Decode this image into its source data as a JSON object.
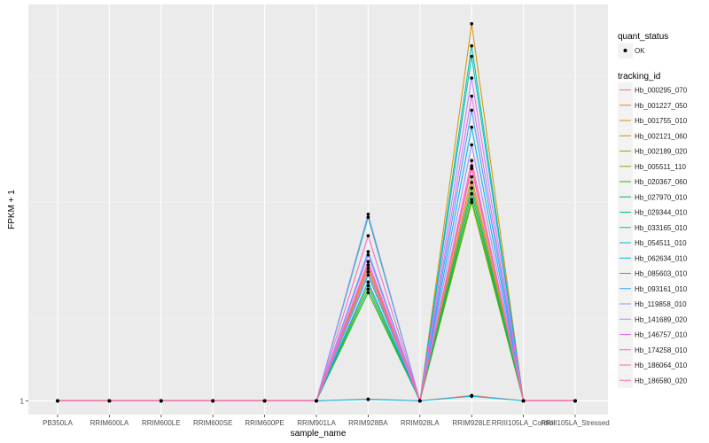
{
  "chart_data": {
    "type": "line",
    "xlabel": "sample_name",
    "ylabel": "FPKM + 1",
    "y_scale": "log",
    "ylim": [
      0.97,
      2.4
    ],
    "y_ticks": [
      1
    ],
    "y_tick_labels": [
      "1"
    ],
    "categories": [
      "PB350LA",
      "RRIM600LA",
      "RRIM600LE",
      "RRIM600SE",
      "RRIM600PE",
      "RRIM901LA",
      "RRIM928BA",
      "RRIM928LA",
      "RRIM928LE",
      "RRIII105LA_Control",
      "RRIII105LA_Stressed"
    ],
    "legend_quant": {
      "title": "quant_status",
      "entries": [
        "OK"
      ]
    },
    "legend_tracking": {
      "title": "tracking_id"
    },
    "series": [
      {
        "name": "Hb_000295_070",
        "color": "#F8766D",
        "values": [
          1,
          1,
          1,
          1,
          1,
          1,
          1.004,
          1,
          1.012,
          1,
          1
        ]
      },
      {
        "name": "Hb_001227_050",
        "color": "#EA8331",
        "values": [
          1,
          1,
          1,
          1,
          1,
          1,
          1.36,
          1,
          1.62,
          1,
          1
        ]
      },
      {
        "name": "Hb_001755_010",
        "color": "#D89000",
        "values": [
          1,
          1,
          1,
          1,
          1,
          1,
          1.34,
          1,
          2.3,
          1,
          1
        ]
      },
      {
        "name": "Hb_002121_060",
        "color": "#C09B00",
        "values": [
          1,
          1,
          1,
          1,
          1,
          1,
          1.35,
          1,
          1.64,
          1,
          1
        ]
      },
      {
        "name": "Hb_002189_020",
        "color": "#A3A500",
        "values": [
          1,
          1,
          1,
          1,
          1,
          1,
          1.33,
          1,
          1.6,
          1,
          1
        ]
      },
      {
        "name": "Hb_005511_110",
        "color": "#7CAE00",
        "values": [
          1,
          1,
          1,
          1,
          1,
          1,
          1.29,
          1,
          1.55,
          1,
          1
        ]
      },
      {
        "name": "Hb_020367_060",
        "color": "#39B600",
        "values": [
          1,
          1,
          1,
          1,
          1,
          1,
          1.27,
          1,
          1.56,
          1,
          1
        ]
      },
      {
        "name": "Hb_027970_010",
        "color": "#00BB4E",
        "values": [
          1,
          1,
          1,
          1,
          1,
          1,
          1.3,
          1,
          1.58,
          1,
          1
        ]
      },
      {
        "name": "Hb_029344_010",
        "color": "#00BF7D",
        "values": [
          1,
          1,
          1,
          1,
          1,
          1,
          1.28,
          1,
          1.6,
          1,
          1
        ]
      },
      {
        "name": "Hb_033165_010",
        "color": "#00C1A3",
        "values": [
          1,
          1,
          1,
          1,
          1,
          1,
          1.5,
          1,
          2.19,
          1,
          1
        ]
      },
      {
        "name": "Hb_054511_010",
        "color": "#00BFC4",
        "values": [
          1,
          1,
          1,
          1,
          1,
          1,
          1.32,
          1,
          2.14,
          1,
          1
        ]
      },
      {
        "name": "Hb_062634_010",
        "color": "#00BAE0",
        "values": [
          1,
          1,
          1,
          1,
          1,
          1,
          1.003,
          1,
          1.01,
          1,
          1
        ]
      },
      {
        "name": "Hb_085603_010",
        "color": "#00B0F6",
        "values": [
          1,
          1,
          1,
          1,
          1,
          1,
          1.3,
          1,
          1.83,
          1,
          1
        ]
      },
      {
        "name": "Hb_093161_010",
        "color": "#35A2FF",
        "values": [
          1,
          1,
          1,
          1,
          1,
          1,
          1.39,
          1,
          1.9,
          1,
          1
        ]
      },
      {
        "name": "Hb_119858_010",
        "color": "#9590FF",
        "values": [
          1,
          1,
          1,
          1,
          1,
          1,
          1.51,
          1,
          1.76,
          1,
          1
        ]
      },
      {
        "name": "Hb_141689_020",
        "color": "#C77CFF",
        "values": [
          1,
          1,
          1,
          1,
          1,
          1,
          1.38,
          1,
          2.04,
          1,
          1
        ]
      },
      {
        "name": "Hb_146757_010",
        "color": "#E76BF3",
        "values": [
          1,
          1,
          1,
          1,
          1,
          1,
          1.33,
          1,
          1.96,
          1,
          1
        ]
      },
      {
        "name": "Hb_174258_010",
        "color": "#FA62DB",
        "values": [
          1,
          1,
          1,
          1,
          1,
          1,
          1.36,
          1,
          1.7,
          1,
          1
        ]
      },
      {
        "name": "Hb_186064_010",
        "color": "#FF62BC",
        "values": [
          1,
          1,
          1,
          1,
          1,
          1,
          1.44,
          1,
          1.67,
          1,
          1
        ]
      },
      {
        "name": "Hb_186580_020",
        "color": "#FF6C91",
        "values": [
          1,
          1,
          1,
          1,
          1,
          1,
          1.35,
          1,
          1.68,
          1,
          1
        ]
      }
    ]
  }
}
